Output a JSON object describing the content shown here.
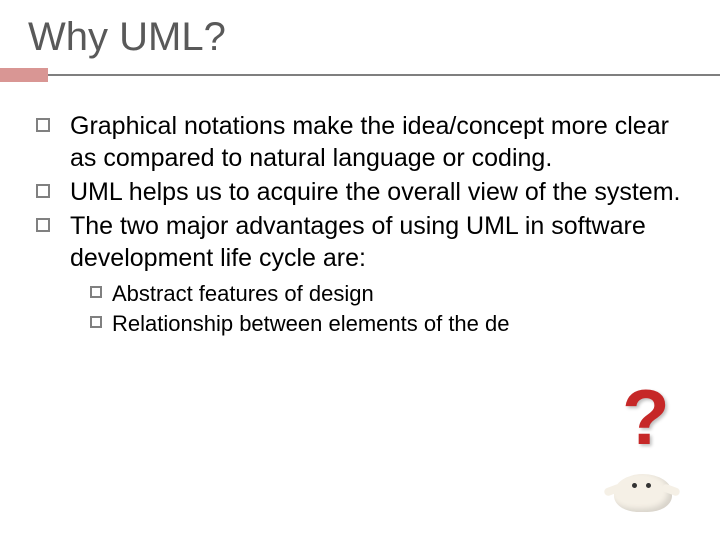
{
  "title": "Why UML?",
  "accent_color": "#d99694",
  "divider_color": "#7f7f7f",
  "title_color": "#595959",
  "text_color": "#000000",
  "bullet_border": "#808080",
  "bullets": [
    "Graphical notations make the idea/concept more clear as compared to natural language or coding.",
    "UML helps us to acquire the overall view of the system.",
    "The two major advantages of using UML in software development life cycle are:"
  ],
  "sub_bullets": [
    "Abstract features of design",
    "Relationship between elements of the de"
  ],
  "figure": {
    "qmark_color": "#c62828",
    "body_color": "#f5f0e6"
  },
  "typography": {
    "title_fontsize": 40,
    "bullet_fontsize": 25,
    "sub_fontsize": 22
  }
}
